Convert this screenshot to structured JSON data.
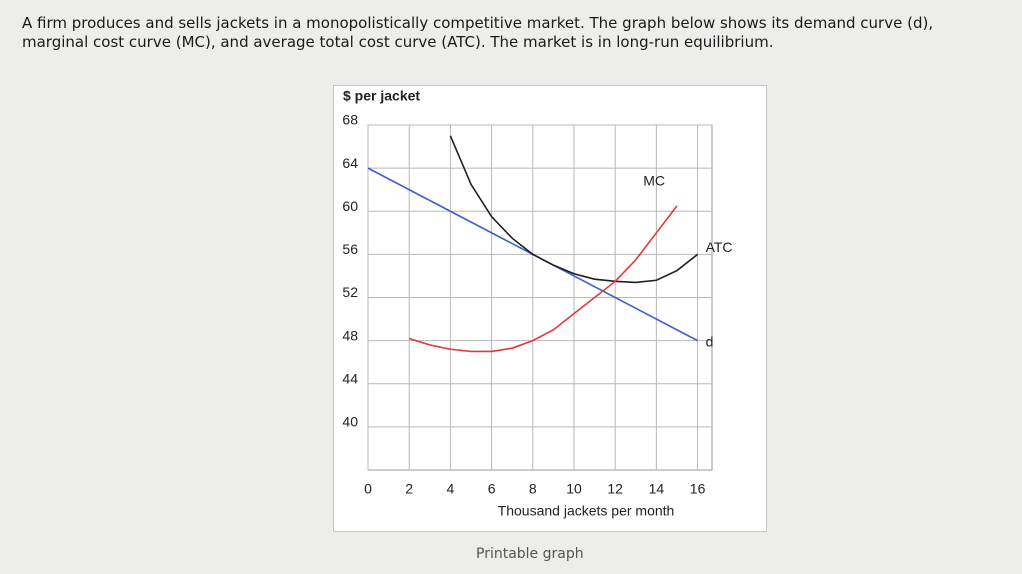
{
  "question": [
    "A firm produces and sells jackets in a monopolistically competitive market. The graph below shows its demand curve (d),",
    "marginal cost curve (MC), and average total cost curve (ATC). The market is in long-run equilibrium."
  ],
  "link": "Printable graph",
  "chart_data": {
    "type": "line",
    "ylabel": "$ per jacket",
    "xlabel": "Thousand jackets per month",
    "xlim": [
      0,
      16.7
    ],
    "ylim": [
      36,
      68
    ],
    "xticks": [
      0,
      2,
      4,
      6,
      8,
      10,
      12,
      14,
      16
    ],
    "yticks": [
      40,
      44,
      48,
      52,
      56,
      60,
      64,
      68
    ],
    "grid": true,
    "series": [
      {
        "name": "d",
        "color": "#3b5fcf",
        "x": [
          0,
          16
        ],
        "values": [
          64,
          48
        ]
      },
      {
        "name": "ATC",
        "color": "#1e1e2a",
        "x": [
          4,
          5,
          6,
          7,
          8,
          9,
          10,
          11,
          12,
          13,
          14,
          15,
          16
        ],
        "values": [
          67,
          62.5,
          59.5,
          57.5,
          56,
          55,
          54.2,
          53.7,
          53.5,
          53.4,
          53.6,
          54.5,
          56
        ]
      },
      {
        "name": "MC",
        "color": "#e03a3a",
        "x": [
          2,
          3,
          4,
          5,
          6,
          7,
          8,
          9,
          10,
          11,
          12,
          13,
          14,
          15
        ],
        "values": [
          48.2,
          47.6,
          47.2,
          47,
          47,
          47.3,
          48,
          49,
          50.5,
          52,
          53.5,
          55.5,
          58,
          60.5
        ]
      }
    ]
  }
}
